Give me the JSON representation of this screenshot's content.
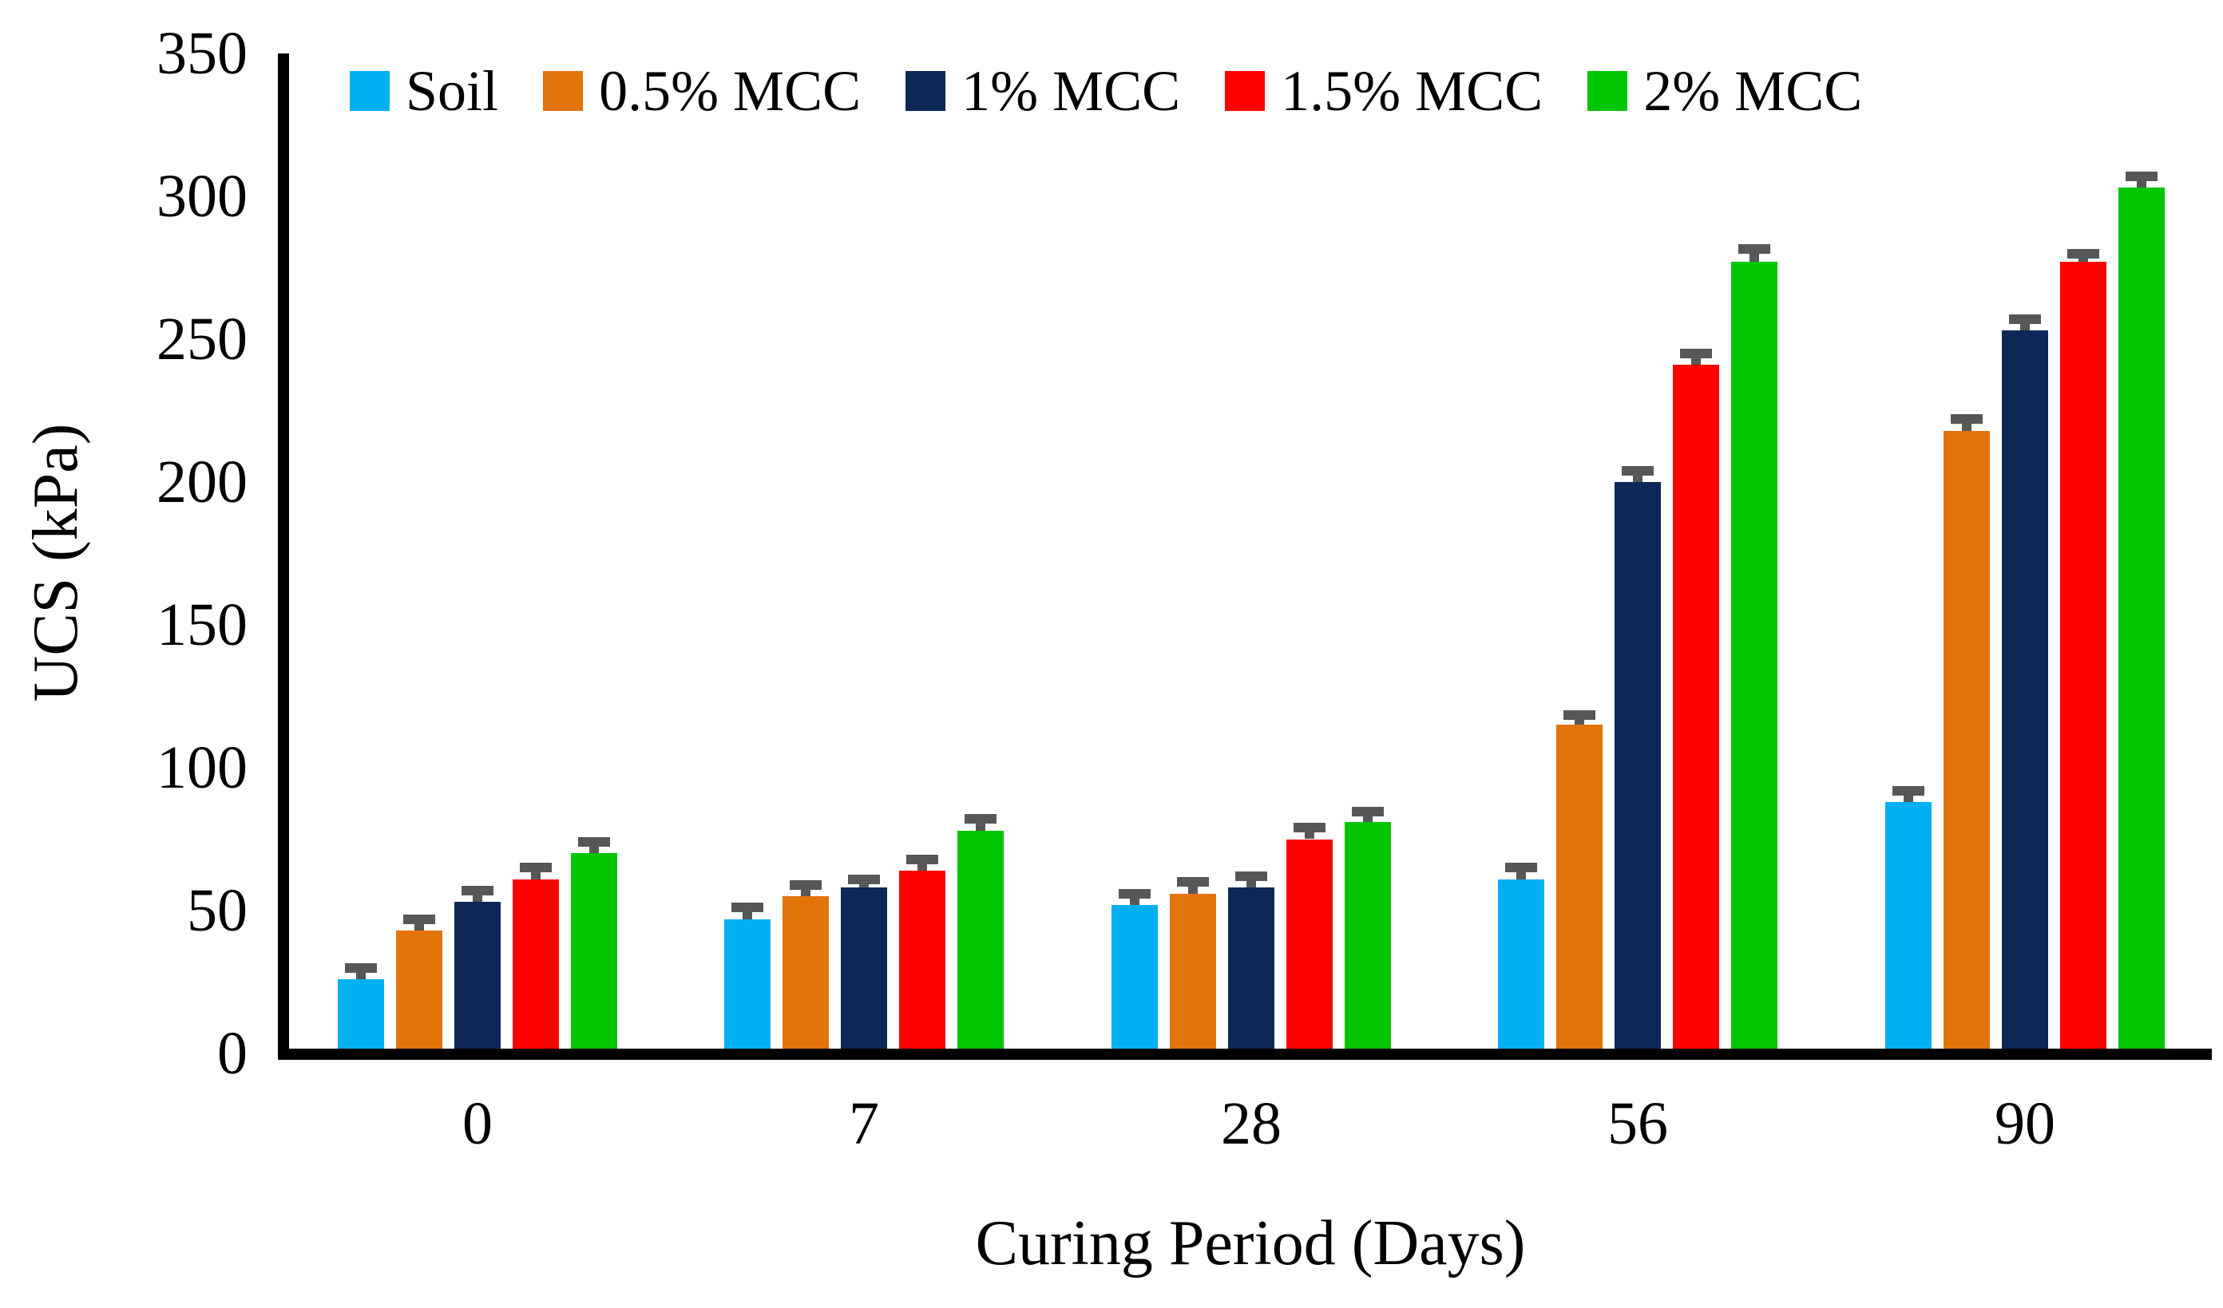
{
  "chart_data": {
    "type": "bar",
    "title": "",
    "xlabel": "Curing Period (Days)",
    "ylabel": "UCS (kPa)",
    "categories": [
      "0",
      "7",
      "28",
      "56",
      "90"
    ],
    "series": [
      {
        "name": "Soil",
        "color": "#00B0F0",
        "values": [
          26,
          47,
          52,
          61,
          88
        ],
        "errors": [
          4,
          4,
          4,
          4,
          4
        ]
      },
      {
        "name": "0.5% MCC",
        "color": "#E2740C",
        "values": [
          43,
          55,
          56,
          115,
          218
        ],
        "errors": [
          4,
          4,
          4,
          3.5,
          4
        ]
      },
      {
        "name": "1% MCC",
        "color": "#0D2757",
        "values": [
          53,
          58,
          58,
          200,
          253
        ],
        "errors": [
          4,
          3,
          4,
          4,
          4
        ]
      },
      {
        "name": "1.5% MCC",
        "color": "#FE0000",
        "values": [
          61,
          64,
          75,
          241,
          277
        ],
        "errors": [
          4,
          4,
          4,
          4,
          3
        ]
      },
      {
        "name": "2% MCC",
        "color": "#00C500",
        "values": [
          70,
          78,
          81,
          277,
          303
        ],
        "errors": [
          4,
          4,
          3.5,
          4.5,
          4
        ]
      }
    ],
    "ylim": [
      0,
      350
    ],
    "yticks": [
      0,
      50,
      100,
      150,
      200,
      250,
      300,
      350
    ],
    "grid": false,
    "legend_position": "top-left",
    "error_bar_color": "#575757",
    "axis_color": "#000000"
  }
}
